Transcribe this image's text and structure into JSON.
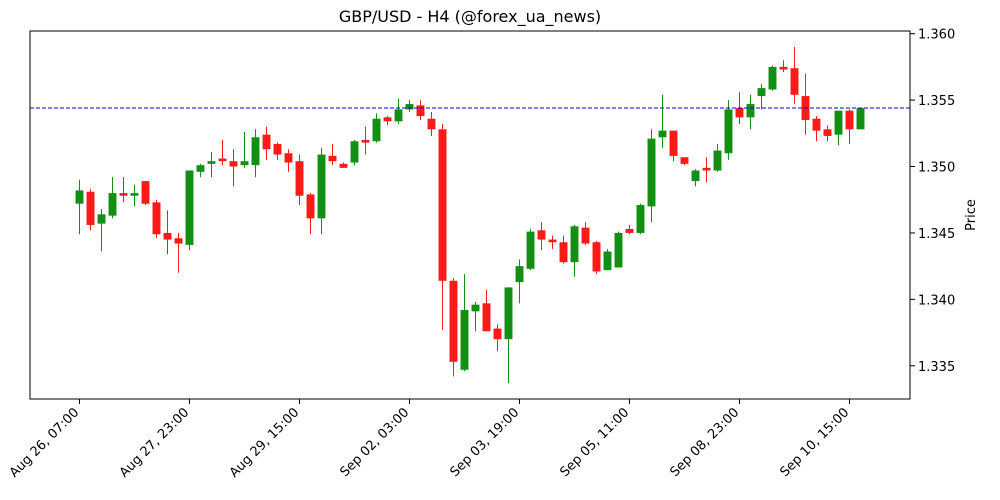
{
  "chart_data": {
    "type": "candlestick",
    "title": "GBP/USD - H4 (@forex_ua_news)",
    "y_label": "Price",
    "up_color": "#138f13",
    "down_color": "#ff1a1a",
    "xlim": [
      -4.5,
      75.5
    ],
    "xticks": [
      {
        "value": 0,
        "label": "Aug 26, 07:00"
      },
      {
        "value": 10,
        "label": "Aug 27, 23:00"
      },
      {
        "value": 20,
        "label": "Aug 29, 15:00"
      },
      {
        "value": 30,
        "label": "Sep 02, 03:00"
      },
      {
        "value": 40,
        "label": "Sep 03, 19:00"
      },
      {
        "value": 50,
        "label": "Sep 05, 11:00"
      },
      {
        "value": 60,
        "label": "Sep 08, 23:00"
      },
      {
        "value": 70,
        "label": "Sep 10, 15:00"
      }
    ],
    "ylim": [
      1.3325,
      1.3602
    ],
    "yticks": [
      1.335,
      {
        "value": 1.34,
        "label": "1.340"
      },
      1.345,
      {
        "value": 1.35,
        "label": "1.350"
      },
      1.355,
      {
        "value": 1.36,
        "label": "1.360"
      }
    ],
    "hline": {
      "value": 1.3544,
      "color": "#0000cc"
    },
    "open": [
      1.3472,
      1.3481,
      1.3457,
      1.3463,
      1.348,
      1.3478,
      1.3489,
      1.3473,
      1.345,
      1.3446,
      1.3441,
      1.3496,
      1.3502,
      1.3506,
      1.3504,
      1.3501,
      1.3501,
      1.3524,
      1.3517,
      1.351,
      1.3504,
      1.3479,
      1.3461,
      1.3508,
      1.3502,
      1.3503,
      1.352,
      1.3519,
      1.3537,
      1.3534,
      1.3543,
      1.3546,
      1.3536,
      1.3528,
      1.3414,
      1.3347,
      1.3391,
      1.3397,
      1.3378,
      1.337,
      1.3413,
      1.3423,
      1.3452,
      1.3445,
      1.3443,
      1.3428,
      1.3454,
      1.3443,
      1.3422,
      1.3424,
      1.3453,
      1.345,
      1.347,
      1.3522,
      1.3527,
      1.3507,
      1.3489,
      1.3499,
      1.3497,
      1.351,
      1.3544,
      1.3537,
      1.3553,
      1.3558,
      1.3575,
      1.3574,
      1.3553,
      1.3536,
      1.3528,
      1.3524,
      1.3542,
      1.3528
    ],
    "high": [
      1.349,
      1.3483,
      1.3468,
      1.3492,
      1.3492,
      1.3486,
      1.3489,
      1.3475,
      1.3467,
      1.345,
      1.3497,
      1.3502,
      1.3511,
      1.352,
      1.3513,
      1.3526,
      1.3528,
      1.353,
      1.3518,
      1.3513,
      1.3509,
      1.348,
      1.3514,
      1.3517,
      1.3503,
      1.352,
      1.353,
      1.354,
      1.3538,
      1.3551,
      1.355,
      1.355,
      1.3541,
      1.3532,
      1.3416,
      1.3419,
      1.3398,
      1.3407,
      1.3381,
      1.3409,
      1.343,
      1.3453,
      1.3458,
      1.3448,
      1.3448,
      1.3456,
      1.3458,
      1.3444,
      1.3438,
      1.3451,
      1.3456,
      1.3472,
      1.3528,
      1.3554,
      1.3527,
      1.3507,
      1.3498,
      1.3507,
      1.3517,
      1.355,
      1.3556,
      1.3554,
      1.3562,
      1.3576,
      1.358,
      1.359,
      1.357,
      1.3538,
      1.3531,
      1.3542,
      1.3543,
      1.3544
    ],
    "low": [
      1.3449,
      1.3452,
      1.3436,
      1.3461,
      1.3473,
      1.347,
      1.3471,
      1.3446,
      1.3434,
      1.342,
      1.3437,
      1.3492,
      1.3492,
      1.3501,
      1.3485,
      1.3499,
      1.3492,
      1.3505,
      1.3505,
      1.3496,
      1.3471,
      1.3449,
      1.3449,
      1.3501,
      1.3499,
      1.3501,
      1.3509,
      1.3518,
      1.3531,
      1.3532,
      1.3541,
      1.3535,
      1.3523,
      1.3377,
      1.3342,
      1.3346,
      1.3376,
      1.3376,
      1.3361,
      1.3337,
      1.3397,
      1.3422,
      1.3437,
      1.3438,
      1.3427,
      1.3417,
      1.3441,
      1.3419,
      1.3422,
      1.3424,
      1.3449,
      1.3449,
      1.3458,
      1.3514,
      1.3504,
      1.3501,
      1.3485,
      1.3488,
      1.3496,
      1.3505,
      1.3532,
      1.3528,
      1.3543,
      1.3557,
      1.3571,
      1.3547,
      1.3524,
      1.3519,
      1.3519,
      1.3516,
      1.3517,
      1.3528
    ],
    "close": [
      1.3482,
      1.3456,
      1.3464,
      1.348,
      1.3478,
      1.348,
      1.3472,
      1.3449,
      1.3445,
      1.3442,
      1.3497,
      1.3501,
      1.3504,
      1.3504,
      1.35,
      1.3504,
      1.3522,
      1.3513,
      1.3509,
      1.3503,
      1.3478,
      1.3461,
      1.3509,
      1.3504,
      1.3499,
      1.3519,
      1.3518,
      1.3536,
      1.3534,
      1.3543,
      1.3547,
      1.3538,
      1.3528,
      1.3414,
      1.3353,
      1.3392,
      1.3396,
      1.3376,
      1.337,
      1.3409,
      1.3425,
      1.3451,
      1.3445,
      1.3443,
      1.3428,
      1.3455,
      1.3442,
      1.3421,
      1.3436,
      1.345,
      1.345,
      1.3471,
      1.3521,
      1.3527,
      1.3508,
      1.3502,
      1.3497,
      1.3497,
      1.3512,
      1.3543,
      1.3537,
      1.3547,
      1.3559,
      1.3575,
      1.3573,
      1.3554,
      1.3535,
      1.3527,
      1.3523,
      1.3542,
      1.3528,
      1.3544
    ]
  }
}
